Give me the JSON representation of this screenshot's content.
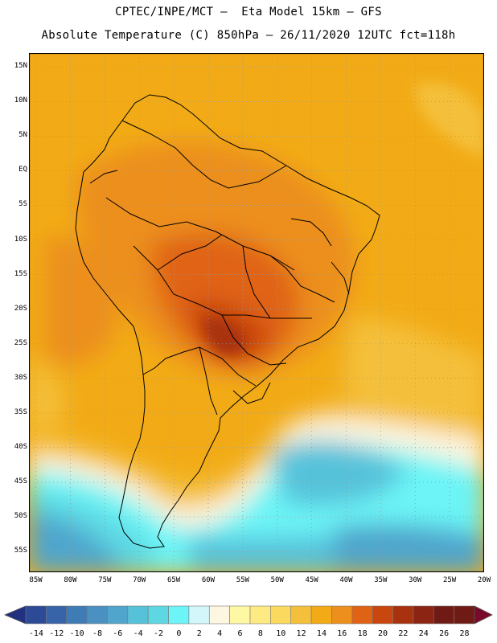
{
  "title_line1": "CPTEC/INPE/MCT –  Eta Model 15km – GFS",
  "title_line2": "Absolute Temperature (C) 850hPa – 26/11/2020 12UTC fct=118h",
  "map": {
    "lat_range_deg": [
      -58,
      17
    ],
    "lon_range_deg": [
      -86,
      -20
    ],
    "lat_labels": [
      "15N",
      "10N",
      "5N",
      "EQ",
      "5S",
      "10S",
      "15S",
      "20S",
      "25S",
      "30S",
      "35S",
      "40S",
      "45S",
      "50S",
      "55S"
    ],
    "lon_labels": [
      "85W",
      "80W",
      "75W",
      "70W",
      "65W",
      "60W",
      "55W",
      "50W",
      "45W",
      "40W",
      "35W",
      "30W",
      "25W",
      "20W"
    ]
  },
  "colorbar": {
    "labels": [
      "-14",
      "-12",
      "-10",
      "-8",
      "-6",
      "-4",
      "-2",
      "0",
      "2",
      "4",
      "6",
      "8",
      "10",
      "12",
      "14",
      "16",
      "18",
      "20",
      "22",
      "24",
      "26",
      "28"
    ],
    "colors": [
      "#21307f",
      "#2d4a97",
      "#3763a8",
      "#3f7bb5",
      "#4a90c1",
      "#4fa5cc",
      "#56c2da",
      "#5dd8e3",
      "#6cf4f6",
      "#d3f6fb",
      "#fdf6e1",
      "#fef8a4",
      "#fdea82",
      "#fbd95e",
      "#f4c03b",
      "#f2ab16",
      "#ec8f1d",
      "#e06315",
      "#c9470e",
      "#a8320e",
      "#8b2413",
      "#6f1a14",
      "#7a0a2a"
    ]
  }
}
